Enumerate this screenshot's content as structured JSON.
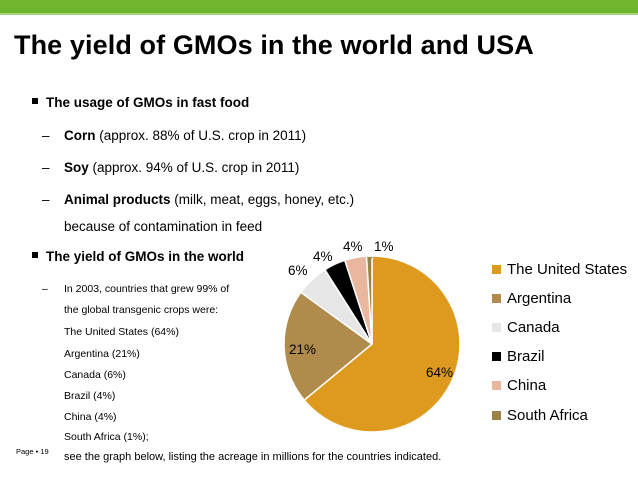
{
  "slide": {
    "title": "The yield of GMOs in the world and USA",
    "bullet1": "The usage of GMOs in fast food",
    "sub1_bold": "Corn",
    "sub1_rest": " (approx. 88% of U.S. crop in 2011)",
    "sub2_bold": "Soy",
    "sub2_rest": " (approx. 94% of U.S. crop in 2011)",
    "sub3_bold": "Animal products",
    "sub3_rest": " (milk, meat, eggs, honey, etc.)",
    "sub3_cont": "because of contamination in feed",
    "bullet2": "The yield of GMOs in the world",
    "sub4_line1": "In 2003, countries that grew 99% of",
    "sub4_line2": "the global transgenic crops were:",
    "list": [
      "The United States (64%)",
      "Argentina (21%)",
      "Canada (6%)",
      "Brazil (4%)",
      "China (4%)",
      "South Africa (1%);"
    ],
    "footer_page": "Page",
    "footer_num": "19",
    "footer_note": "see the graph below, listing the acreage in millions for the countries indicated."
  },
  "chart_data": {
    "type": "pie",
    "categories": [
      "The United States",
      "Argentina",
      "Canada",
      "Brazil",
      "China",
      "South Africa"
    ],
    "values": [
      64,
      21,
      6,
      4,
      4,
      1
    ],
    "labels": [
      "64%",
      "21%",
      "6%",
      "4%",
      "4%",
      "1%"
    ],
    "colors": [
      "#de9a1e",
      "#b18b4b",
      "#e6e6e6",
      "#000000",
      "#e8b79d",
      "#9e8149"
    ],
    "legend_position": "right"
  }
}
